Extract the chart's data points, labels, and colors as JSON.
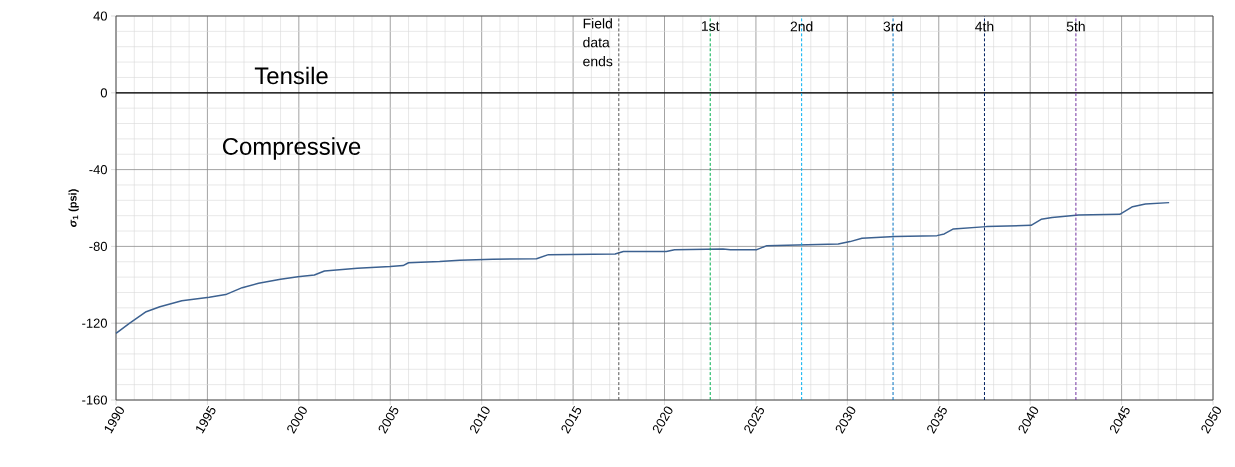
{
  "chart_data": {
    "type": "line",
    "ylabel": "*σ*$_{1}$ (psi)",
    "xlim": [
      1990,
      2050
    ],
    "xticks": [
      1990,
      1995,
      2000,
      2005,
      2010,
      2015,
      2020,
      2025,
      2030,
      2035,
      2040,
      2045,
      2050
    ],
    "ylim": [
      -160,
      40
    ],
    "yticks": [
      -160,
      -120,
      -80,
      -40,
      0,
      40
    ],
    "grid": true,
    "series": [
      {
        "color": "#3c6190",
        "x": [
          1990,
          1990.75,
          1991.65,
          1992.4,
          1993.6,
          1995.1,
          1996,
          1996.9,
          1997.8,
          1999,
          1999.95,
          2000.85,
          2001.4,
          2003.2,
          2005,
          2005.7,
          2006,
          2007.7,
          2008.8,
          2010.6,
          2013,
          2013.65,
          2017.3,
          2017.75,
          2020.1,
          2020.55,
          2023.2,
          2023.6,
          2025.05,
          2025.6,
          2029.5,
          2030.15,
          2030.8,
          2032.6,
          2034.9,
          2035.3,
          2035.8,
          2037.6,
          2040.05,
          2040.6,
          2041.2,
          2042.65,
          2044.9,
          2045.6,
          2046.3,
          2047.6
        ],
        "values": [
          -125.3,
          -120,
          -114,
          -111.4,
          -108.3,
          -106.5,
          -105.1,
          -101.5,
          -99.2,
          -97.1,
          -95.8,
          -94.9,
          -92.8,
          -91.4,
          -90.5,
          -90,
          -88.5,
          -87.9,
          -87.2,
          -86.7,
          -86.4,
          -84.3,
          -84,
          -82.7,
          -82.7,
          -81.7,
          -81.4,
          -81.7,
          -81.7,
          -79.6,
          -78.8,
          -77.5,
          -75.8,
          -74.9,
          -74.4,
          -73.5,
          -70.9,
          -69.7,
          -69,
          -65.9,
          -64.9,
          -63.6,
          -63.3,
          -59.3,
          -57.9,
          -57.2
        ]
      }
    ],
    "ref_lines": [
      {
        "axis": "y",
        "value": 0,
        "color": "#000000",
        "line_style": "solid"
      },
      {
        "axis": "x",
        "value": 2017.5,
        "label": "Field data ends",
        "color": "#555555",
        "line_style": "dashed"
      },
      {
        "axis": "x",
        "value": 2022.5,
        "label": "1st",
        "color": "#00b050",
        "line_style": "dashed"
      },
      {
        "axis": "x",
        "value": 2027.5,
        "label": "2nd",
        "color": "#00b0f0",
        "line_style": "dashed"
      },
      {
        "axis": "x",
        "value": 2032.5,
        "label": "3rd",
        "color": "#0070c0",
        "line_style": "dashed"
      },
      {
        "axis": "x",
        "value": 2037.5,
        "label": "4th",
        "color": "#002060",
        "line_style": "dashed"
      },
      {
        "axis": "x",
        "value": 2042.5,
        "label": "5th",
        "color": "#7030a0",
        "line_style": "dashed"
      }
    ],
    "annotations": [
      "Tensile",
      "Compressive"
    ]
  }
}
